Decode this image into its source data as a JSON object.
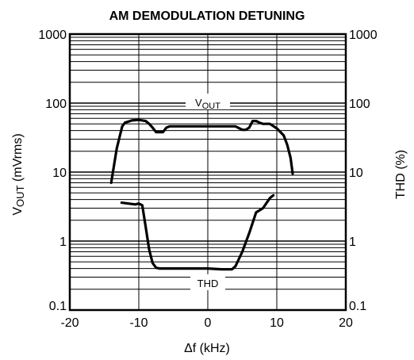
{
  "chart_data": {
    "type": "line",
    "title": "AM DEMODULATION DETUNING",
    "xlabel": "Δf (kHz)",
    "ylabel_left": "VOUT (mVrms)",
    "ylabel_left_parts": {
      "main1": "V",
      "sub": "OUT",
      "main2": " (mVrms)"
    },
    "ylabel_right": "THD (%)",
    "xlim": [
      -20,
      20
    ],
    "ylim": [
      0.1,
      1000
    ],
    "yscale": "log",
    "x_ticks": [
      {
        "value": -20,
        "label": "-20"
      },
      {
        "value": -10,
        "label": "-10"
      },
      {
        "value": 0,
        "label": "0"
      },
      {
        "value": 10,
        "label": "10"
      },
      {
        "value": 20,
        "label": "20"
      }
    ],
    "y_ticks_left": [
      {
        "value": 0.1,
        "label": "0.1"
      },
      {
        "value": 1,
        "label": "1"
      },
      {
        "value": 10,
        "label": "10"
      },
      {
        "value": 100,
        "label": "100"
      },
      {
        "value": 1000,
        "label": "1000"
      }
    ],
    "y_ticks_right": [
      {
        "value": 0.1,
        "label": "0.1"
      },
      {
        "value": 1,
        "label": "1"
      },
      {
        "value": 10,
        "label": "10"
      },
      {
        "value": 100,
        "label": "100"
      },
      {
        "value": 1000,
        "label": "1000"
      }
    ],
    "grid": true,
    "series": [
      {
        "label_parts": {
          "main": "V",
          "sub": "OUT"
        },
        "label_at": {
          "x": 0,
          "y": 100
        },
        "x": [
          -14,
          -13.2,
          -12.4,
          -12,
          -11,
          -10,
          -9,
          -8.5,
          -8,
          -7.5,
          -7,
          -6.5,
          -6,
          -5.5,
          -5,
          0,
          2,
          4,
          5,
          5.5,
          6,
          6.5,
          7,
          7.5,
          8,
          9,
          10,
          11,
          11.5,
          12,
          12.3
        ],
        "y": [
          7,
          22,
          46,
          52,
          56,
          57,
          55,
          50,
          44,
          38,
          38,
          38,
          44,
          46,
          46,
          46,
          46,
          46,
          41,
          41,
          44,
          55,
          55,
          52,
          50,
          50,
          43,
          34,
          25,
          16,
          9.5
        ]
      },
      {
        "label": "THD",
        "label_at": {
          "x": 0,
          "y": 0.24
        },
        "x": [
          -12.5,
          -11.5,
          -10.5,
          -10,
          -9.5,
          -9,
          -8.5,
          -8,
          -7.5,
          -7,
          -4,
          0,
          2,
          3.5,
          4,
          5,
          6,
          7,
          8,
          9,
          9.5
        ],
        "y": [
          3.6,
          3.5,
          3.4,
          3.5,
          3.3,
          1.6,
          0.75,
          0.48,
          0.41,
          0.4,
          0.4,
          0.4,
          0.39,
          0.39,
          0.43,
          0.7,
          1.3,
          2.6,
          3.0,
          4.2,
          4.6
        ]
      }
    ]
  },
  "colors": {
    "line": "#000000",
    "grid": "#000000",
    "background": "#ffffff"
  }
}
